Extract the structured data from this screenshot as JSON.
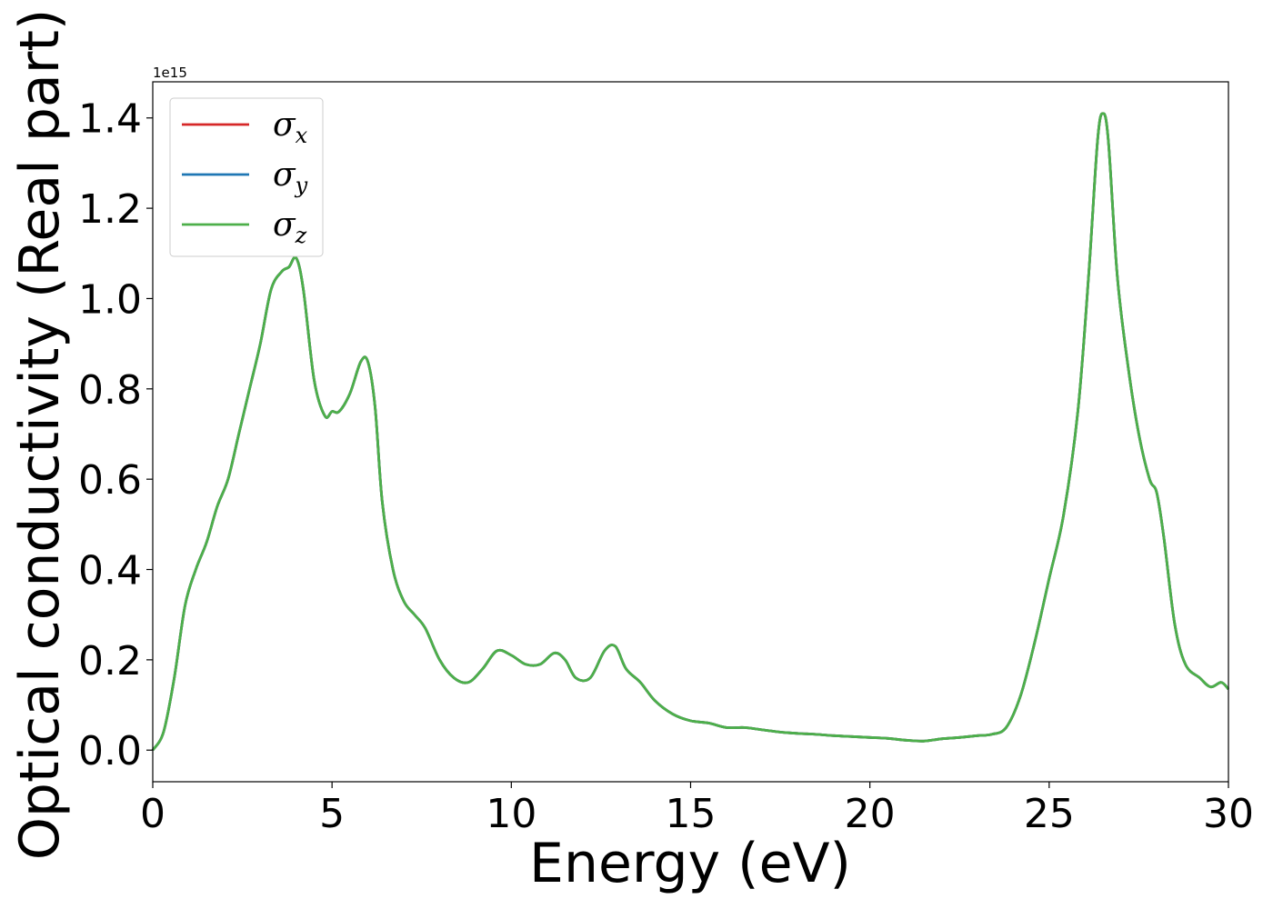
{
  "chart_data": {
    "type": "line",
    "title": "",
    "xlabel": "Energy (eV)",
    "ylabel": "Optical conductivity (Real part)",
    "y_offset_label": "1e15",
    "xlim": [
      0,
      30
    ],
    "ylim": [
      -0.07,
      1.48
    ],
    "xticks": [
      0,
      5,
      10,
      15,
      20,
      25,
      30
    ],
    "xtick_labels": [
      "0",
      "5",
      "10",
      "15",
      "20",
      "25",
      "30"
    ],
    "yticks": [
      0.0,
      0.2,
      0.4,
      0.6,
      0.8,
      1.0,
      1.2,
      1.4
    ],
    "ytick_labels": [
      "0.0",
      "0.2",
      "0.4",
      "0.6",
      "0.8",
      "1.0",
      "1.2",
      "1.4"
    ],
    "grid": false,
    "legend_position": "top-left",
    "x": [
      0.0,
      0.3,
      0.6,
      0.9,
      1.2,
      1.5,
      1.8,
      2.1,
      2.4,
      2.7,
      3.0,
      3.3,
      3.6,
      3.8,
      4.0,
      4.2,
      4.5,
      4.8,
      5.0,
      5.2,
      5.5,
      5.8,
      6.0,
      6.2,
      6.4,
      6.7,
      7.0,
      7.3,
      7.6,
      8.0,
      8.4,
      8.8,
      9.2,
      9.6,
      10.0,
      10.4,
      10.8,
      11.2,
      11.5,
      11.8,
      12.2,
      12.6,
      12.9,
      13.2,
      13.6,
      14.0,
      14.5,
      15.0,
      15.5,
      16.0,
      16.5,
      17.0,
      17.5,
      18.0,
      18.5,
      19.0,
      19.5,
      20.0,
      20.5,
      21.0,
      21.5,
      22.0,
      22.5,
      23.0,
      23.4,
      23.8,
      24.2,
      24.6,
      25.0,
      25.4,
      25.8,
      26.1,
      26.35,
      26.5,
      26.65,
      26.9,
      27.2,
      27.5,
      27.8,
      28.0,
      28.2,
      28.5,
      28.8,
      29.2,
      29.5,
      29.8,
      30.0
    ],
    "series": [
      {
        "name": "σx",
        "color": "#d62728",
        "values": [
          0.0,
          0.04,
          0.16,
          0.32,
          0.4,
          0.46,
          0.54,
          0.6,
          0.7,
          0.8,
          0.9,
          1.02,
          1.06,
          1.07,
          1.09,
          1.02,
          0.82,
          0.74,
          0.75,
          0.75,
          0.79,
          0.86,
          0.86,
          0.76,
          0.55,
          0.4,
          0.33,
          0.3,
          0.27,
          0.2,
          0.16,
          0.15,
          0.18,
          0.22,
          0.21,
          0.19,
          0.19,
          0.215,
          0.2,
          0.16,
          0.16,
          0.22,
          0.23,
          0.18,
          0.15,
          0.11,
          0.08,
          0.065,
          0.06,
          0.05,
          0.05,
          0.045,
          0.04,
          0.037,
          0.035,
          0.032,
          0.03,
          0.028,
          0.026,
          0.022,
          0.02,
          0.025,
          0.028,
          0.032,
          0.035,
          0.05,
          0.12,
          0.24,
          0.38,
          0.52,
          0.75,
          1.05,
          1.35,
          1.41,
          1.35,
          1.05,
          0.85,
          0.7,
          0.6,
          0.57,
          0.47,
          0.28,
          0.19,
          0.16,
          0.14,
          0.15,
          0.135
        ]
      },
      {
        "name": "σy",
        "color": "#1f77b4",
        "values": [
          0.0,
          0.04,
          0.16,
          0.32,
          0.4,
          0.46,
          0.54,
          0.6,
          0.7,
          0.8,
          0.9,
          1.02,
          1.06,
          1.07,
          1.09,
          1.02,
          0.82,
          0.74,
          0.75,
          0.75,
          0.79,
          0.86,
          0.86,
          0.76,
          0.55,
          0.4,
          0.33,
          0.3,
          0.27,
          0.2,
          0.16,
          0.15,
          0.18,
          0.22,
          0.21,
          0.19,
          0.19,
          0.215,
          0.2,
          0.16,
          0.16,
          0.22,
          0.23,
          0.18,
          0.15,
          0.11,
          0.08,
          0.065,
          0.06,
          0.05,
          0.05,
          0.045,
          0.04,
          0.037,
          0.035,
          0.032,
          0.03,
          0.028,
          0.026,
          0.022,
          0.02,
          0.025,
          0.028,
          0.032,
          0.035,
          0.05,
          0.12,
          0.24,
          0.38,
          0.52,
          0.75,
          1.05,
          1.35,
          1.41,
          1.35,
          1.05,
          0.85,
          0.7,
          0.6,
          0.57,
          0.47,
          0.28,
          0.19,
          0.16,
          0.14,
          0.15,
          0.135
        ]
      },
      {
        "name": "σz",
        "color": "#4daf4a",
        "values": [
          0.0,
          0.04,
          0.16,
          0.32,
          0.4,
          0.46,
          0.54,
          0.6,
          0.7,
          0.8,
          0.9,
          1.02,
          1.06,
          1.07,
          1.09,
          1.02,
          0.82,
          0.74,
          0.75,
          0.75,
          0.79,
          0.86,
          0.86,
          0.76,
          0.55,
          0.4,
          0.33,
          0.3,
          0.27,
          0.2,
          0.16,
          0.15,
          0.18,
          0.22,
          0.21,
          0.19,
          0.19,
          0.215,
          0.2,
          0.16,
          0.16,
          0.22,
          0.23,
          0.18,
          0.15,
          0.11,
          0.08,
          0.065,
          0.06,
          0.05,
          0.05,
          0.045,
          0.04,
          0.037,
          0.035,
          0.032,
          0.03,
          0.028,
          0.026,
          0.022,
          0.02,
          0.025,
          0.028,
          0.032,
          0.035,
          0.05,
          0.12,
          0.24,
          0.38,
          0.52,
          0.75,
          1.05,
          1.35,
          1.41,
          1.35,
          1.05,
          0.85,
          0.7,
          0.6,
          0.57,
          0.47,
          0.28,
          0.19,
          0.16,
          0.14,
          0.15,
          0.135
        ]
      }
    ],
    "legend": [
      {
        "symbol": "σ",
        "subscript": "x",
        "color": "#d62728"
      },
      {
        "symbol": "σ",
        "subscript": "y",
        "color": "#1f77b4"
      },
      {
        "symbol": "σ",
        "subscript": "z",
        "color": "#4daf4a"
      }
    ]
  }
}
